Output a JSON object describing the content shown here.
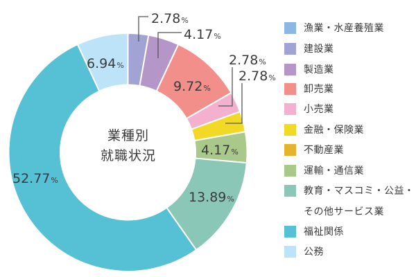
{
  "chart_data": {
    "type": "pie",
    "subtype": "donut",
    "title": "業種別就職状況",
    "title_lines": [
      "業種別",
      "就職状況"
    ],
    "unit": "%",
    "categories": [
      "漁業・水産養殖業",
      "建設業",
      "製造業",
      "卸売業",
      "小売業",
      "金融・保険業",
      "不動産業",
      "運輸・通信業",
      "教育・マスコミ・公益・その他サービス業",
      "福祉関係",
      "公務"
    ],
    "values": [
      0,
      2.78,
      4.17,
      9.72,
      2.78,
      2.78,
      0,
      4.17,
      13.89,
      52.77,
      6.94
    ],
    "colors": [
      "#8ab8e2",
      "#a0a3d4",
      "#b497c8",
      "#f28f8a",
      "#f4b0cf",
      "#f1d925",
      "#e6b42c",
      "#a8c98a",
      "#8bc7b7",
      "#56c0d4",
      "#bde3f8"
    ],
    "labels": [
      "",
      "2.78",
      "4.17",
      "9.72",
      "2.78",
      "2.78",
      "",
      "4.17",
      "13.89",
      "52.77",
      "6.94"
    ],
    "start_angle_deg": 0,
    "direction": "clockwise",
    "legend_position": "right"
  },
  "legend": {
    "items": [
      {
        "label": "漁業・水産養殖業",
        "color": "#8ab8e2"
      },
      {
        "label": "建設業",
        "color": "#a0a3d4"
      },
      {
        "label": "製造業",
        "color": "#b497c8"
      },
      {
        "label": "卸売業",
        "color": "#f28f8a"
      },
      {
        "label": "小売業",
        "color": "#f4b0cf"
      },
      {
        "label": "金融・保険業",
        "color": "#f1d925"
      },
      {
        "label": "不動産業",
        "color": "#e6b42c"
      },
      {
        "label": "運輸・通信業",
        "color": "#a8c98a"
      },
      {
        "label": "教育・マスコミ・公益・",
        "label_line2": "その他サービス業",
        "color": "#8bc7b7"
      },
      {
        "label": "福祉関係",
        "color": "#56c0d4"
      },
      {
        "label": "公務",
        "color": "#bde3f8"
      }
    ]
  },
  "center": {
    "line1": "業種別",
    "line2": "就職状況"
  }
}
